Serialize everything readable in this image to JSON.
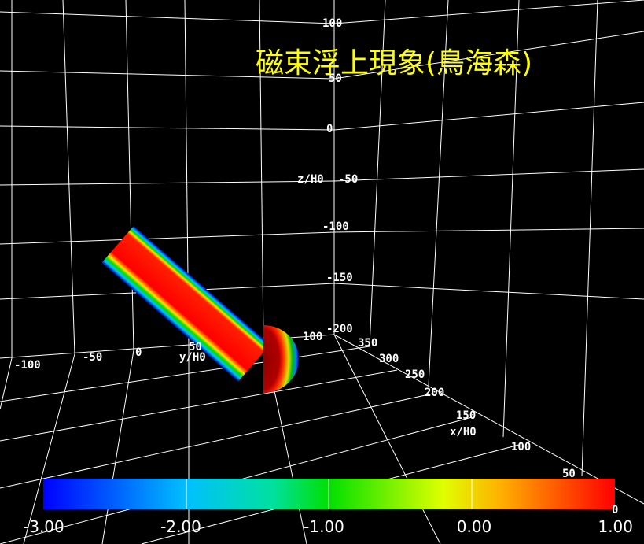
{
  "title": "磁束浮上現象(鳥海森)",
  "z_axis": {
    "label": "z/H0",
    "ticks": [
      "100",
      "50",
      "0",
      "-50",
      "-100",
      "-150",
      "-200"
    ]
  },
  "y_axis": {
    "label": "y/H0",
    "ticks": [
      "-100",
      "-50",
      "0",
      "50",
      "100"
    ]
  },
  "x_axis": {
    "label": "x/H0",
    "ticks": [
      "350",
      "300",
      "250",
      "200",
      "150",
      "100",
      "50",
      "0"
    ]
  },
  "colorbar": {
    "labels": [
      "-3.00",
      "-2.00",
      "-1.00",
      "0.00",
      "1.00"
    ]
  }
}
